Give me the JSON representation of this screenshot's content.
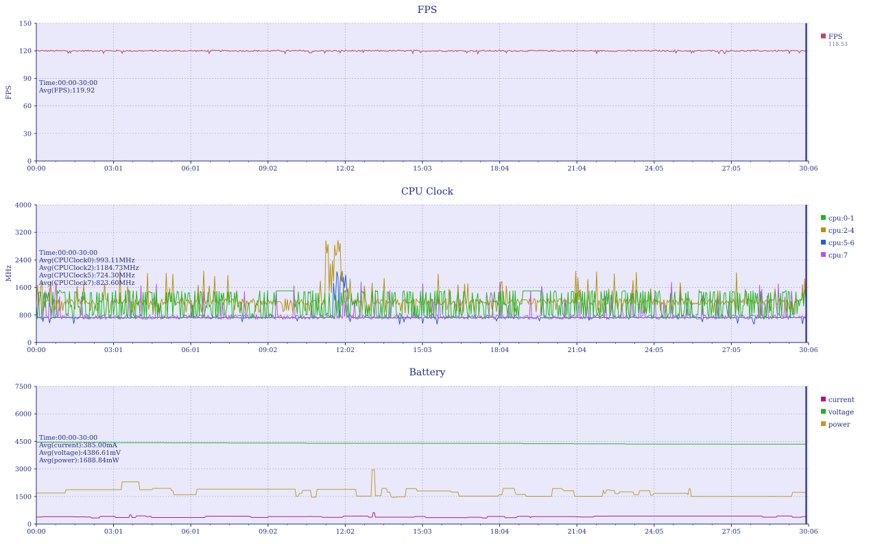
{
  "chart_data": [
    {
      "type": "line",
      "title": "FPS",
      "ylabel": "FPS",
      "ylim": [
        0,
        150
      ],
      "yticks": [
        "0",
        "30",
        "60",
        "90",
        "120",
        "150"
      ],
      "xticks": [
        "00:00",
        "03:01",
        "06:01",
        "09:02",
        "12:02",
        "15:03",
        "18:04",
        "21:04",
        "24:05",
        "27:05",
        "30:06"
      ],
      "grid": true,
      "legend_position": "right",
      "stats": [
        "Time:00:00-30:00",
        "Avg(FPS):119.92"
      ],
      "series": [
        {
          "name": "FPS",
          "legend_value": "118.53",
          "color": "#c8455e",
          "x": [
            "00:00",
            "30:06"
          ],
          "y": [
            120,
            120
          ]
        }
      ]
    },
    {
      "type": "line",
      "title": "CPU Clock",
      "ylabel": "MHz",
      "ylim": [
        0,
        4000
      ],
      "yticks": [
        "0",
        "800",
        "1600",
        "2400",
        "3200",
        "4000"
      ],
      "xticks": [
        "00:00",
        "03:01",
        "06:01",
        "09:02",
        "12:02",
        "15:03",
        "18:04",
        "21:04",
        "24:05",
        "27:05",
        "30:06"
      ],
      "grid": true,
      "legend_position": "right",
      "stats": [
        "Time:00:00-30:00",
        "Avg(CPUClock0):993.11MHz",
        "Avg(CPUClock2):1184.73MHz",
        "Avg(CPUClock5):724.30MHz",
        "Avg(CPUClock7):823.60MHz"
      ],
      "series": [
        {
          "name": "cpu:0-1",
          "color": "#22b522",
          "x": [
            "00:00",
            "30:06"
          ],
          "y": [
            993,
            993
          ]
        },
        {
          "name": "cpu:2-4",
          "color": "#b8900e",
          "x": [
            "00:00",
            "11:40",
            "11:50",
            "30:06"
          ],
          "y": [
            1185,
            3150,
            1185,
            1185
          ]
        },
        {
          "name": "cpu:5-6",
          "color": "#1f5fd0",
          "x": [
            "00:00",
            "30:06"
          ],
          "y": [
            724,
            724
          ]
        },
        {
          "name": "cpu:7",
          "color": "#b655e0",
          "x": [
            "00:00",
            "30:06"
          ],
          "y": [
            824,
            824
          ]
        }
      ]
    },
    {
      "type": "line",
      "title": "Battery",
      "ylabel": "",
      "ylim": [
        0,
        7500
      ],
      "yticks": [
        "0",
        "1500",
        "3000",
        "4500",
        "6000",
        "7500"
      ],
      "xticks": [
        "00:00",
        "03:01",
        "06:01",
        "09:02",
        "12:02",
        "15:03",
        "18:04",
        "21:04",
        "24:05",
        "27:05",
        "30:06"
      ],
      "grid": true,
      "legend_position": "right",
      "stats": [
        "Time:00:00-30:00",
        "Avg(current):385.00mA",
        "Avg(voltage):4386.61mV",
        "Avg(power):1688.84mW"
      ],
      "series": [
        {
          "name": "current",
          "color": "#b0168c",
          "x": [
            "00:00",
            "03:40",
            "13:10",
            "30:06"
          ],
          "y": [
            385,
            500,
            620,
            385
          ]
        },
        {
          "name": "voltage",
          "color": "#22b522",
          "x": [
            "00:00",
            "06:00",
            "12:00",
            "18:00",
            "24:00",
            "30:06"
          ],
          "y": [
            4450,
            4420,
            4400,
            4390,
            4360,
            4350
          ]
        },
        {
          "name": "power",
          "color": "#c09a2a",
          "x": [
            "00:00",
            "03:40",
            "13:10",
            "30:06"
          ],
          "y": [
            1689,
            2300,
            2950,
            1600
          ]
        }
      ]
    }
  ]
}
